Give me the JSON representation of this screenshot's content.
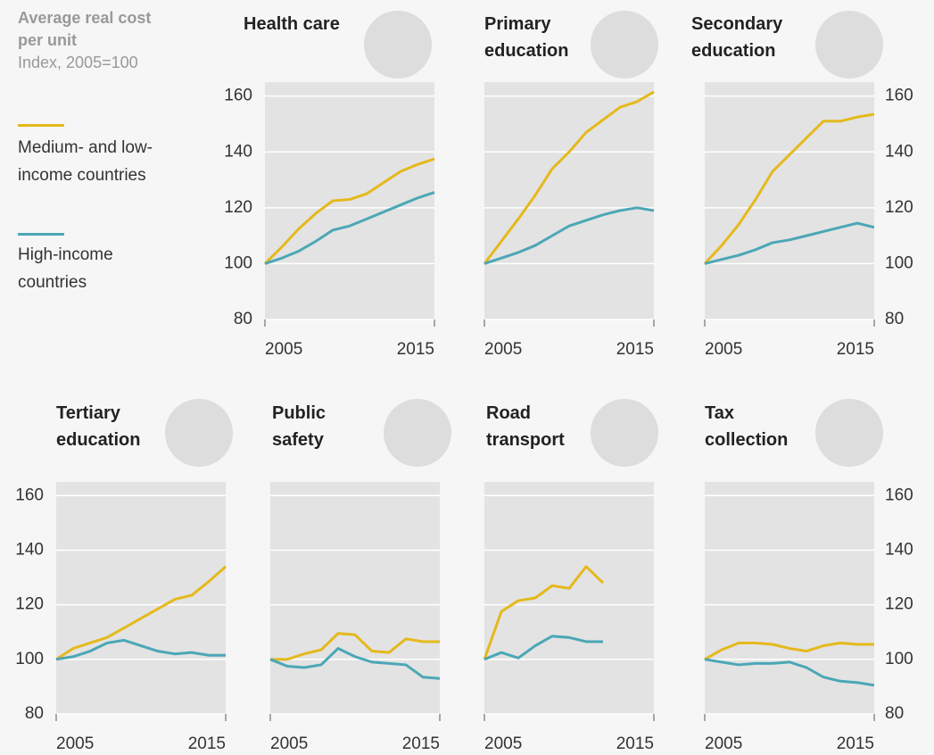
{
  "header": {
    "title": "Average real cost per unit",
    "subtitle": "Index, 2005=100"
  },
  "chart_data": [
    {
      "type": "line",
      "title": "Health care",
      "x": [
        2005,
        2006,
        2007,
        2008,
        2009,
        2010,
        2011,
        2012,
        2013,
        2014,
        2015
      ],
      "series": [
        {
          "name": "Medium- and low-income countries",
          "color": "#e5b91c",
          "values": [
            100,
            106,
            112.5,
            118,
            122.5,
            123,
            125,
            129,
            133,
            135.5,
            137.5
          ]
        },
        {
          "name": "High-income countries",
          "color": "#4ba7b6",
          "values": [
            100,
            102,
            104.5,
            108,
            112,
            113.5,
            116,
            118.5,
            121,
            123.5,
            125.5
          ]
        }
      ],
      "xlim": [
        2005,
        2015
      ],
      "xticks": [
        2005,
        2015
      ],
      "ylim": [
        80,
        165
      ],
      "yticks": [
        80,
        100,
        120,
        140,
        160
      ],
      "grid": true
    },
    {
      "type": "line",
      "title": "Primary education",
      "x": [
        2005,
        2006,
        2007,
        2008,
        2009,
        2010,
        2011,
        2012,
        2013,
        2014,
        2015
      ],
      "series": [
        {
          "name": "Medium- and low-income countries",
          "color": "#e5b91c",
          "values": [
            100,
            108,
            116,
            124.5,
            134,
            140,
            147,
            151.5,
            156,
            158,
            161.5
          ]
        },
        {
          "name": "High-income countries",
          "color": "#4ba7b6",
          "values": [
            100,
            102,
            104,
            106.5,
            110,
            113.5,
            115.5,
            117.5,
            119,
            120,
            119
          ]
        }
      ],
      "xlim": [
        2005,
        2015
      ],
      "xticks": [
        2005,
        2015
      ],
      "ylim": [
        80,
        165
      ],
      "yticks": [
        80,
        100,
        120,
        140,
        160
      ],
      "grid": true
    },
    {
      "type": "line",
      "title": "Secondary education",
      "x": [
        2005,
        2006,
        2007,
        2008,
        2009,
        2010,
        2011,
        2012,
        2013,
        2014,
        2015
      ],
      "series": [
        {
          "name": "Medium- and low-income countries",
          "color": "#e5b91c",
          "values": [
            100,
            106.5,
            114,
            123,
            133,
            139,
            145,
            151,
            151,
            152.5,
            153.5
          ]
        },
        {
          "name": "High-income countries",
          "color": "#4ba7b6",
          "values": [
            100,
            101.5,
            103,
            105,
            107.5,
            108.5,
            110,
            111.5,
            113,
            114.5,
            113
          ]
        }
      ],
      "xlim": [
        2005,
        2015
      ],
      "xticks": [
        2005,
        2015
      ],
      "ylim": [
        80,
        165
      ],
      "yticks": [
        80,
        100,
        120,
        140,
        160
      ],
      "grid": true
    },
    {
      "type": "line",
      "title": "Tertiary education",
      "x": [
        2005,
        2006,
        2007,
        2008,
        2009,
        2010,
        2011,
        2012,
        2013,
        2014,
        2015
      ],
      "series": [
        {
          "name": "Medium- and low-income countries",
          "color": "#e5b91c",
          "values": [
            100,
            104,
            106,
            108,
            111.5,
            115,
            118.5,
            122,
            123.5,
            128.5,
            134
          ]
        },
        {
          "name": "High-income countries",
          "color": "#4ba7b6",
          "values": [
            100,
            101,
            103,
            106,
            107,
            105,
            103,
            102,
            102.5,
            101.5,
            101.5
          ]
        }
      ],
      "xlim": [
        2005,
        2015
      ],
      "xticks": [
        2005,
        2015
      ],
      "ylim": [
        80,
        165
      ],
      "yticks": [
        80,
        100,
        120,
        140,
        160
      ],
      "grid": true
    },
    {
      "type": "line",
      "title": "Public safety",
      "x": [
        2005,
        2006,
        2007,
        2008,
        2009,
        2010,
        2011,
        2012,
        2013,
        2014,
        2015
      ],
      "series": [
        {
          "name": "Medium- and low-income countries",
          "color": "#e5b91c",
          "values": [
            100,
            100,
            102,
            103.5,
            109.5,
            109,
            103,
            102.5,
            107.5,
            106.5,
            106.5
          ]
        },
        {
          "name": "High-income countries",
          "color": "#4ba7b6",
          "values": [
            100,
            97.5,
            97,
            98,
            104,
            101,
            99,
            98.5,
            98,
            93.5,
            93
          ]
        }
      ],
      "xlim": [
        2005,
        2015
      ],
      "xticks": [
        2005,
        2015
      ],
      "ylim": [
        80,
        165
      ],
      "yticks": [
        80,
        100,
        120,
        140,
        160
      ],
      "grid": true
    },
    {
      "type": "line",
      "title": "Road transport",
      "x": [
        2005,
        2006,
        2007,
        2008,
        2009,
        2010,
        2011,
        2012,
        2013,
        2014,
        2015
      ],
      "series": [
        {
          "name": "Medium- and low-income countries",
          "color": "#e5b91c",
          "values": [
            100,
            117.5,
            121.5,
            122.5,
            127,
            126,
            134,
            128,
            null,
            null,
            null
          ]
        },
        {
          "name": "High-income countries",
          "color": "#4ba7b6",
          "values": [
            100,
            102.5,
            100.5,
            105,
            108.5,
            108,
            106.5,
            106.5,
            null,
            null,
            null
          ]
        }
      ],
      "xlim": [
        2005,
        2015
      ],
      "xticks": [
        2005,
        2015
      ],
      "ylim": [
        80,
        165
      ],
      "yticks": [
        80,
        100,
        120,
        140,
        160
      ],
      "grid": true
    },
    {
      "type": "line",
      "title": "Tax collection",
      "x": [
        2005,
        2006,
        2007,
        2008,
        2009,
        2010,
        2011,
        2012,
        2013,
        2014,
        2015
      ],
      "series": [
        {
          "name": "Medium- and low-income countries",
          "color": "#e5b91c",
          "values": [
            100,
            103.5,
            106,
            106,
            105.5,
            104,
            103,
            105,
            106,
            105.5,
            105.5
          ]
        },
        {
          "name": "High-income countries",
          "color": "#4ba7b6",
          "values": [
            100,
            99,
            98,
            98.5,
            98.5,
            99,
            97,
            93.5,
            92,
            91.5,
            90.5
          ]
        }
      ],
      "xlim": [
        2005,
        2015
      ],
      "xticks": [
        2005,
        2015
      ],
      "ylim": [
        80,
        165
      ],
      "yticks": [
        80,
        100,
        120,
        140,
        160
      ],
      "grid": true
    }
  ]
}
